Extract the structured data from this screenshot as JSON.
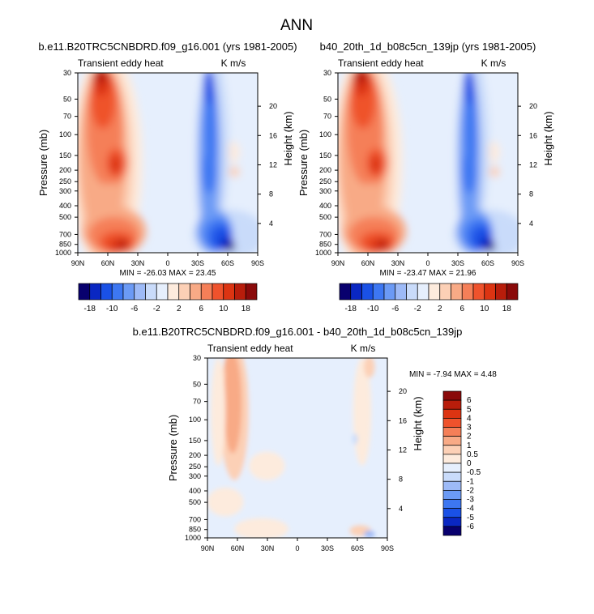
{
  "figure": {
    "title": "ANN"
  },
  "colors": {
    "diverging_panels": [
      "#08006e",
      "#0a27c2",
      "#1a51e6",
      "#3d77f2",
      "#6b9af5",
      "#9dbaf7",
      "#c9dbfa",
      "#e6effd",
      "#fdebdd",
      "#fcd0b6",
      "#f8aa86",
      "#f57f58",
      "#ef522c",
      "#dc3412",
      "#b81d0b",
      "#8a0a0a"
    ],
    "diverging_diff": [
      "#08006e",
      "#0a27c2",
      "#1a51e6",
      "#3d77f2",
      "#6b9af5",
      "#9dbaf7",
      "#c9dbfa",
      "#e6effd",
      "#fdebdd",
      "#fcd0b6",
      "#f8aa86",
      "#f57f58",
      "#ef522c",
      "#dc3412",
      "#b81d0b",
      "#8a0a0a"
    ]
  },
  "chart_data": [
    {
      "type": "contour",
      "title": "b.e11.B20TRC5CNBDRD.f09_g16.001 (yrs 1981-2005)",
      "subtitle": "Transient eddy heat",
      "units": "K m/s",
      "ylabel": "Pressure (mb)",
      "y2label": "Height (km)",
      "x_ticks": [
        "90N",
        "60N",
        "30N",
        "0",
        "30S",
        "60S",
        "90S"
      ],
      "y_ticks": [
        "30",
        "50",
        "70",
        "100",
        "150",
        "200",
        "250",
        "300",
        "400",
        "500",
        "700",
        "850",
        "1000"
      ],
      "y_log": true,
      "ylim": [
        1000,
        30
      ],
      "y2_ticks": [
        "4",
        "8",
        "12",
        "16",
        "20"
      ],
      "stats": "MIN = -26.03  MAX =  23.45",
      "colorbar_labels": [
        "-18",
        "-10",
        "-6",
        "-2",
        "2",
        "6",
        "10",
        "18"
      ],
      "colorbar_orientation": "horizontal"
    },
    {
      "type": "contour",
      "title": "b40_20th_1d_b08c5cn_139jp (yrs 1981-2005)",
      "subtitle": "Transient eddy heat",
      "units": "K m/s",
      "ylabel": "Pressure (mb)",
      "y2label": "Height (km)",
      "x_ticks": [
        "90N",
        "60N",
        "30N",
        "0",
        "30S",
        "60S",
        "90S"
      ],
      "y_ticks": [
        "30",
        "50",
        "70",
        "100",
        "150",
        "200",
        "250",
        "300",
        "400",
        "500",
        "700",
        "850",
        "1000"
      ],
      "y_log": true,
      "ylim": [
        1000,
        30
      ],
      "y2_ticks": [
        "4",
        "8",
        "12",
        "16",
        "20"
      ],
      "stats": "MIN = -23.47  MAX =  21.96",
      "colorbar_labels": [
        "-18",
        "-10",
        "-6",
        "-2",
        "2",
        "6",
        "10",
        "18"
      ],
      "colorbar_orientation": "horizontal"
    },
    {
      "type": "contour",
      "title": "b.e11.B20TRC5CNBDRD.f09_g16.001 - b40_20th_1d_b08c5cn_139jp",
      "subtitle": "Transient eddy heat",
      "units": "K m/s",
      "ylabel": "Pressure (mb)",
      "y2label": "Height (km)",
      "x_ticks": [
        "90N",
        "60N",
        "30N",
        "0",
        "30S",
        "60S",
        "90S"
      ],
      "y_ticks": [
        "30",
        "50",
        "70",
        "100",
        "150",
        "200",
        "250",
        "300",
        "400",
        "500",
        "700",
        "850",
        "1000"
      ],
      "y_log": true,
      "ylim": [
        1000,
        30
      ],
      "y2_ticks": [
        "4",
        "8",
        "12",
        "16",
        "20"
      ],
      "stats": "MIN = -7.94  MAX =  4.48",
      "colorbar_labels": [
        "6",
        "5",
        "4",
        "3",
        "2",
        "1",
        "0.5",
        "0",
        "-0.5",
        "-1",
        "-2",
        "-3",
        "-4",
        "-5",
        "-6"
      ],
      "colorbar_orientation": "vertical"
    }
  ]
}
